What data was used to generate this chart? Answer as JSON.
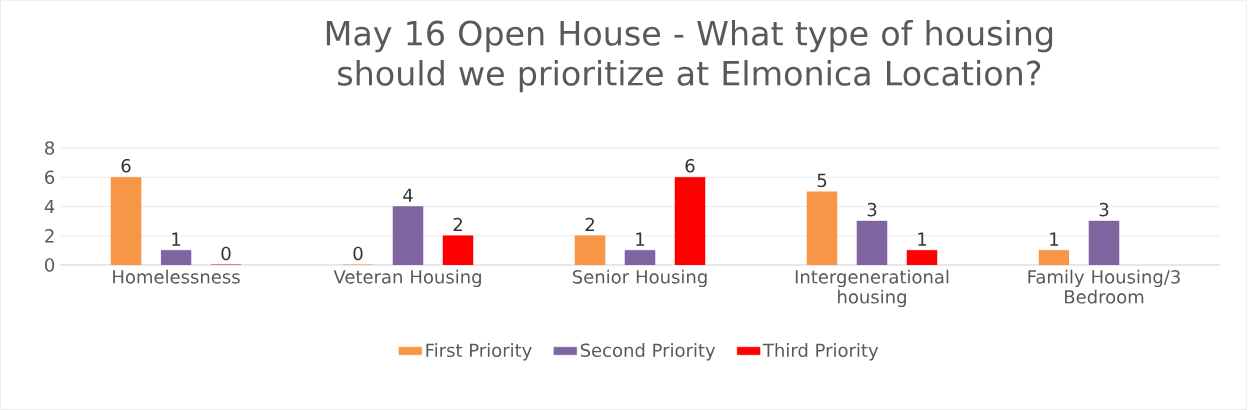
{
  "chart_data": {
    "type": "bar",
    "title": "May 16 Open House - What type of housing should we prioritize at Elmonica Location?",
    "categories": [
      "Homelessness",
      "Veteran Housing",
      "Senior Housing",
      "Intergenerational housing",
      "Family Housing/3 Bedroom"
    ],
    "series": [
      {
        "name": "First Priority",
        "color": "#f79646",
        "values": [
          6,
          0,
          2,
          5,
          1
        ]
      },
      {
        "name": "Second Priority",
        "color": "#8064a2",
        "values": [
          1,
          4,
          1,
          3,
          3
        ]
      },
      {
        "name": "Third Priority",
        "color": "#ff0000",
        "values": [
          0,
          2,
          6,
          1,
          null
        ]
      }
    ],
    "ylim": [
      0,
      8
    ],
    "yticks": [
      0,
      2,
      4,
      6,
      8
    ],
    "grid": "y",
    "legend": "bottom",
    "data_labels": true
  }
}
